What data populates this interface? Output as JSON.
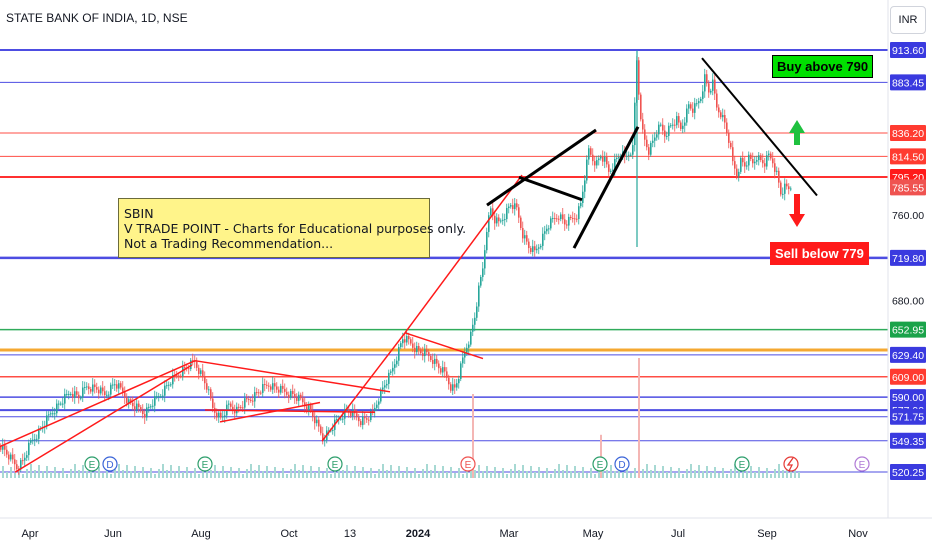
{
  "header": {
    "title": "STATE BANK OF INDIA, 1D, NSE",
    "currency": "INR"
  },
  "note": {
    "lines": [
      "SBIN",
      "V TRADE POINT - Charts for Educational purposes only.",
      "Not a Trading Recommendation..."
    ]
  },
  "callouts": {
    "buy": "Buy above 790",
    "sell": "Sell below 779"
  },
  "colors": {
    "up": "#26a69a",
    "down": "#ef5350",
    "red_level": "#ff3b30",
    "blue_level": "#3a3adf",
    "green_level": "#1aa34a",
    "orange_level": "#f59f1b"
  },
  "chart_data": {
    "type": "candlestick",
    "symbol": "STATE BANK OF INDIA",
    "interval": "1D",
    "exchange": "NSE",
    "currency": "INR",
    "x_labels": [
      "Apr",
      "Jun",
      "Aug",
      "Oct",
      "13",
      "2024",
      "Mar",
      "May",
      "Jul",
      "Sep",
      "Nov"
    ],
    "y_ticks": [
      913.6,
      883.45,
      836.2,
      814.5,
      795.2,
      785.55,
      760.0,
      719.8,
      680.0,
      652.95,
      629.4,
      609.0,
      590.0,
      577.9,
      571.75,
      549.35,
      520.25
    ],
    "price_labels": [
      {
        "value": 913.6,
        "text": "913.60",
        "color": "#3a3adf"
      },
      {
        "value": 883.45,
        "text": "883.45",
        "color": "#3a3adf"
      },
      {
        "value": 836.2,
        "text": "836.20",
        "color": "#ff3b30"
      },
      {
        "value": 814.5,
        "text": "814.50",
        "color": "#ff3b30"
      },
      {
        "value": 795.2,
        "text": "795.20",
        "color": "#ff1a1a"
      },
      {
        "value": 785.55,
        "text": "785.55",
        "color": "#ef5350"
      },
      {
        "value": 760.0,
        "text": "760.00",
        "color": ""
      },
      {
        "value": 719.8,
        "text": "719.80",
        "color": "#3a3adf"
      },
      {
        "value": 680.0,
        "text": "680.00",
        "color": ""
      },
      {
        "value": 652.95,
        "text": "652.95",
        "color": "#1aa34a"
      },
      {
        "value": 629.4,
        "text": "629.40",
        "color": "#3a3adf"
      },
      {
        "value": 609.0,
        "text": "609.00",
        "color": "#ff3b30"
      },
      {
        "value": 590.0,
        "text": "590.00",
        "color": "#3a3adf"
      },
      {
        "value": 577.9,
        "text": "577.90",
        "color": "#3a3adf"
      },
      {
        "value": 571.75,
        "text": "571.75",
        "color": "#3a3adf"
      },
      {
        "value": 549.35,
        "text": "549.35",
        "color": "#3a3adf"
      },
      {
        "value": 520.25,
        "text": "520.25",
        "color": "#3a3adf"
      }
    ],
    "horizontal_levels": [
      {
        "value": 913.6,
        "color": "#3a3adf",
        "width": 2
      },
      {
        "value": 883.45,
        "color": "#3a3adf",
        "width": 1
      },
      {
        "value": 836.2,
        "color": "#ff3b30",
        "width": 1
      },
      {
        "value": 814.5,
        "color": "#ff3b30",
        "width": 1
      },
      {
        "value": 795.2,
        "color": "#ff1a1a",
        "width": 2
      },
      {
        "value": 719.8,
        "color": "#3a3adf",
        "width": 2.5
      },
      {
        "value": 652.95,
        "color": "#1aa34a",
        "width": 1.5
      },
      {
        "value": 634.0,
        "color": "#f59f1b",
        "width": 3
      },
      {
        "value": 629.4,
        "color": "#3a3adf",
        "width": 1
      },
      {
        "value": 609.0,
        "color": "#ff3b30",
        "width": 1.5
      },
      {
        "value": 590.0,
        "color": "#3a3adf",
        "width": 1.5
      },
      {
        "value": 577.9,
        "color": "#3a3adf",
        "width": 2
      },
      {
        "value": 571.75,
        "color": "#3a3adf",
        "width": 1
      },
      {
        "value": 549.35,
        "color": "#3a3adf",
        "width": 1
      },
      {
        "value": 520.25,
        "color": "#3a3adf",
        "width": 1
      }
    ],
    "price_path": [
      [
        0,
        545
      ],
      [
        8,
        535
      ],
      [
        16,
        525
      ],
      [
        22,
        530
      ],
      [
        30,
        548
      ],
      [
        40,
        560
      ],
      [
        50,
        575
      ],
      [
        60,
        585
      ],
      [
        70,
        595
      ],
      [
        78,
        590
      ],
      [
        86,
        600
      ],
      [
        96,
        598
      ],
      [
        104,
        592
      ],
      [
        114,
        603
      ],
      [
        122,
        595
      ],
      [
        128,
        585
      ],
      [
        136,
        580
      ],
      [
        144,
        575
      ],
      [
        152,
        585
      ],
      [
        160,
        593
      ],
      [
        170,
        605
      ],
      [
        178,
        612
      ],
      [
        186,
        618
      ],
      [
        194,
        623
      ],
      [
        200,
        612
      ],
      [
        206,
        600
      ],
      [
        212,
        580
      ],
      [
        220,
        570
      ],
      [
        228,
        582
      ],
      [
        236,
        578
      ],
      [
        244,
        585
      ],
      [
        252,
        590
      ],
      [
        260,
        597
      ],
      [
        268,
        602
      ],
      [
        276,
        598
      ],
      [
        284,
        595
      ],
      [
        292,
        592
      ],
      [
        300,
        587
      ],
      [
        308,
        580
      ],
      [
        316,
        565
      ],
      [
        322,
        552
      ],
      [
        330,
        560
      ],
      [
        338,
        570
      ],
      [
        346,
        578
      ],
      [
        354,
        573
      ],
      [
        360,
        568
      ],
      [
        366,
        570
      ],
      [
        372,
        575
      ],
      [
        378,
        590
      ],
      [
        384,
        602
      ],
      [
        390,
        612
      ],
      [
        396,
        628
      ],
      [
        402,
        645
      ],
      [
        408,
        642
      ],
      [
        414,
        636
      ],
      [
        420,
        632
      ],
      [
        426,
        630
      ],
      [
        432,
        625
      ],
      [
        438,
        618
      ],
      [
        444,
        612
      ],
      [
        450,
        600
      ],
      [
        454,
        598
      ],
      [
        458,
        610
      ],
      [
        462,
        625
      ],
      [
        466,
        638
      ],
      [
        470,
        648
      ],
      [
        474,
        665
      ],
      [
        478,
        690
      ],
      [
        482,
        710
      ],
      [
        486,
        748
      ],
      [
        490,
        765
      ],
      [
        494,
        755
      ],
      [
        498,
        752
      ],
      [
        504,
        760
      ],
      [
        510,
        770
      ],
      [
        516,
        765
      ],
      [
        522,
        742
      ],
      [
        528,
        730
      ],
      [
        534,
        725
      ],
      [
        540,
        735
      ],
      [
        546,
        748
      ],
      [
        552,
        755
      ],
      [
        558,
        760
      ],
      [
        564,
        752
      ],
      [
        570,
        755
      ],
      [
        576,
        760
      ],
      [
        580,
        770
      ],
      [
        584,
        795
      ],
      [
        588,
        820
      ],
      [
        592,
        812
      ],
      [
        596,
        808
      ],
      [
        600,
        815
      ],
      [
        604,
        810
      ],
      [
        608,
        800
      ],
      [
        612,
        806
      ],
      [
        616,
        812
      ],
      [
        620,
        818
      ],
      [
        624,
        812
      ],
      [
        628,
        818
      ],
      [
        632,
        822
      ],
      [
        636,
        905
      ],
      [
        640,
        845
      ],
      [
        644,
        830
      ],
      [
        648,
        820
      ],
      [
        652,
        828
      ],
      [
        656,
        838
      ],
      [
        660,
        842
      ],
      [
        664,
        835
      ],
      [
        668,
        840
      ],
      [
        672,
        845
      ],
      [
        676,
        848
      ],
      [
        680,
        840
      ],
      [
        684,
        850
      ],
      [
        688,
        862
      ],
      [
        692,
        858
      ],
      [
        696,
        862
      ],
      [
        700,
        870
      ],
      [
        704,
        888
      ],
      [
        708,
        875
      ],
      [
        712,
        882
      ],
      [
        716,
        860
      ],
      [
        720,
        855
      ],
      [
        724,
        845
      ],
      [
        728,
        830
      ],
      [
        732,
        808
      ],
      [
        736,
        798
      ],
      [
        740,
        810
      ],
      [
        744,
        806
      ],
      [
        748,
        812
      ],
      [
        752,
        808
      ],
      [
        756,
        815
      ],
      [
        760,
        810
      ],
      [
        764,
        808
      ],
      [
        768,
        815
      ],
      [
        772,
        810
      ],
      [
        776,
        798
      ],
      [
        780,
        780
      ],
      [
        784,
        785
      ],
      [
        788,
        784
      ],
      [
        792,
        789
      ]
    ],
    "trendlines": [
      {
        "x1": 0,
        "y1": 544,
        "x2": 195,
        "y2": 624,
        "color": "#ff1a1a",
        "width": 1.5
      },
      {
        "x1": 15,
        "y1": 520,
        "x2": 192,
        "y2": 620,
        "color": "#ff1a1a",
        "width": 1.5
      },
      {
        "x1": 195,
        "y1": 624,
        "x2": 390,
        "y2": 595,
        "color": "#ff1a1a",
        "width": 1.5
      },
      {
        "x1": 205,
        "y1": 578,
        "x2": 375,
        "y2": 576,
        "color": "#ff1a1a",
        "width": 1.5
      },
      {
        "x1": 220,
        "y1": 567,
        "x2": 320,
        "y2": 585,
        "color": "#ff1a1a",
        "width": 1.5
      },
      {
        "x1": 322,
        "y1": 549,
        "x2": 405,
        "y2": 650,
        "color": "#ff1a1a",
        "width": 1.5
      },
      {
        "x1": 405,
        "y1": 650,
        "x2": 483,
        "y2": 626,
        "color": "#ff1a1a",
        "width": 1.5
      },
      {
        "x1": 405,
        "y1": 650,
        "x2": 522,
        "y2": 797,
        "color": "#ff1a1a",
        "width": 1.5
      },
      {
        "x1": 487,
        "y1": 769,
        "x2": 596,
        "y2": 839,
        "color": "#000000",
        "width": 3
      },
      {
        "x1": 519,
        "y1": 795,
        "x2": 582,
        "y2": 774,
        "color": "#000000",
        "width": 3
      },
      {
        "x1": 574,
        "y1": 729,
        "x2": 638,
        "y2": 842,
        "color": "#000000",
        "width": 3
      },
      {
        "x1": 702,
        "y1": 906,
        "x2": 817,
        "y2": 778,
        "color": "#000000",
        "width": 2
      }
    ],
    "earnings_markers": [
      {
        "x": 92,
        "text": "E"
      },
      {
        "x": 205,
        "text": "E"
      },
      {
        "x": 335,
        "text": "E"
      },
      {
        "x": 468,
        "text": "E"
      },
      {
        "x": 600,
        "text": "E"
      },
      {
        "x": 742,
        "text": "E"
      },
      {
        "x": 862,
        "text": "E"
      }
    ],
    "dividend_markers": [
      {
        "x": 110,
        "text": "D"
      },
      {
        "x": 622,
        "text": "D"
      }
    ],
    "split_markers": [
      {
        "x": 791
      }
    ],
    "arrows": [
      {
        "x": 797,
        "direction": "up",
        "color": "#1fc13f"
      },
      {
        "x": 797,
        "direction": "down",
        "color": "#ff1a1a"
      }
    ],
    "volume_spikes": [
      {
        "x": 472,
        "height": 0.35
      },
      {
        "x": 638,
        "height": 0.5
      },
      {
        "x": 600,
        "height": 0.18
      }
    ]
  }
}
